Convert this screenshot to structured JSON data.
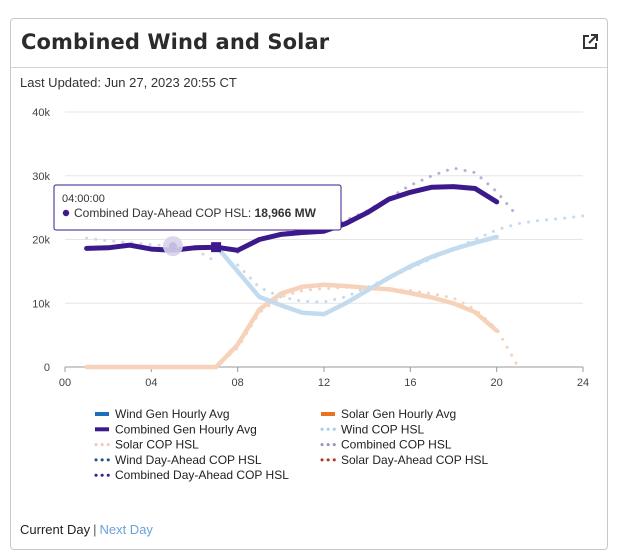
{
  "title": "Combined Wind and Solar",
  "last_updated": "Last Updated: Jun 27, 2023 20:55 CT",
  "footer": {
    "current": "Current Day",
    "separator": "|",
    "next": "Next Day"
  },
  "tooltip": {
    "time": "04:00:00",
    "label": "Combined Day-Ahead COP HSL:",
    "value": "18,966 MW"
  },
  "colors": {
    "wind": "#1f6fb8",
    "solar": "#e8731f",
    "combined": "#3d1a8c",
    "wind_light": "#c3dbef",
    "solar_light": "#f7d2bb",
    "combined_dot": "#b9b0d8"
  },
  "chart_data": {
    "type": "line",
    "xlim": [
      0,
      24
    ],
    "ylim": [
      0,
      40000
    ],
    "x_ticks": [
      "00",
      "04",
      "08",
      "12",
      "16",
      "20",
      "24"
    ],
    "y_ticks": [
      "0",
      "10k",
      "20k",
      "30k",
      "40k"
    ],
    "series": [
      {
        "name": "Wind Gen Hourly Avg",
        "style": "solid",
        "color": "#c3dbef",
        "x": [
          7,
          8,
          9,
          10,
          11,
          12,
          13,
          14,
          15,
          16,
          17,
          18,
          19,
          20
        ],
        "y": [
          19000,
          15000,
          11000,
          9700,
          8500,
          8300,
          10000,
          12000,
          14000,
          15800,
          17300,
          18500,
          19500,
          20400
        ]
      },
      {
        "name": "Solar Gen Hourly Avg",
        "style": "solid",
        "color": "#f7d2bb",
        "x": [
          1,
          2,
          3,
          4,
          5,
          6,
          7,
          8,
          9,
          10,
          11,
          12,
          13,
          14,
          15,
          16,
          17,
          18,
          19,
          20
        ],
        "y": [
          0,
          0,
          0,
          0,
          0,
          0,
          0,
          3500,
          9000,
          11500,
          12600,
          12900,
          12700,
          12400,
          12200,
          11600,
          10900,
          10000,
          8600,
          5700
        ]
      },
      {
        "name": "Combined Gen Hourly Avg",
        "style": "solid",
        "color": "#3d1a8c",
        "x": [
          1,
          2,
          3,
          4,
          5,
          6,
          7,
          8,
          9,
          10,
          11,
          12,
          13,
          14,
          15,
          16,
          17,
          18,
          19,
          20
        ],
        "y": [
          18600,
          18700,
          19100,
          18500,
          18300,
          18700,
          18800,
          18300,
          20000,
          20800,
          21100,
          21300,
          22500,
          24200,
          26300,
          27400,
          28200,
          28300,
          28000,
          25900
        ]
      },
      {
        "name": "Wind COP HSL",
        "style": "dotted",
        "color": "#c3dbef",
        "x": [
          8,
          9,
          10,
          11,
          12,
          13,
          14,
          15,
          16,
          17,
          18,
          19,
          20,
          21,
          22,
          23,
          24
        ],
        "y": [
          16000,
          12500,
          11000,
          10300,
          10200,
          11000,
          12500,
          14000,
          15500,
          17000,
          18500,
          20000,
          21500,
          22500,
          23000,
          23300,
          23700
        ]
      },
      {
        "name": "Solar COP HSL",
        "style": "dotted",
        "color": "#f7d2bb",
        "x": [
          7,
          8,
          9,
          10,
          11,
          12,
          13,
          14,
          15,
          16,
          17,
          18,
          19,
          20,
          20.5,
          21
        ],
        "y": [
          0,
          3000,
          8500,
          11000,
          12000,
          12300,
          12500,
          12400,
          12200,
          12000,
          11500,
          10800,
          9000,
          6000,
          3000,
          0
        ]
      },
      {
        "name": "Combined COP HSL",
        "style": "dotted",
        "color": "#b9b0d8",
        "x": [
          8,
          9,
          10,
          11,
          12,
          13,
          14,
          15,
          16,
          17,
          18,
          19,
          20,
          21
        ],
        "y": [
          18000,
          20000,
          21000,
          21500,
          22000,
          23000,
          24500,
          26500,
          28500,
          30000,
          31200,
          30500,
          27500,
          23500
        ]
      },
      {
        "name": "Wind Day-Ahead COP HSL",
        "style": "dotted",
        "color": "#1f6fb8",
        "x": [],
        "y": []
      },
      {
        "name": "Solar Day-Ahead COP HSL",
        "style": "dotted",
        "color": "#c0392b",
        "x": [],
        "y": []
      },
      {
        "name": "Combined Day-Ahead COP HSL",
        "style": "dotted",
        "color": "#d8d3ea",
        "x": [
          1,
          2,
          3,
          4,
          5,
          6,
          7
        ],
        "y": [
          20200,
          19800,
          19500,
          19200,
          18966,
          18500,
          16500
        ]
      }
    ],
    "legend": [
      {
        "label": "Wind Gen Hourly Avg",
        "color": "#1f6fb8",
        "style": "solid"
      },
      {
        "label": "Solar Gen Hourly Avg",
        "color": "#e8731f",
        "style": "solid"
      },
      {
        "label": "Combined Gen Hourly Avg",
        "color": "#3d1a8c",
        "style": "solid"
      },
      {
        "label": "Wind COP HSL",
        "color": "#a9c9e8",
        "style": "dotted"
      },
      {
        "label": "Solar COP HSL",
        "color": "#f3c8ad",
        "style": "dotted"
      },
      {
        "label": "Combined COP HSL",
        "color": "#9b8fc8",
        "style": "dotted"
      },
      {
        "label": "Wind Day-Ahead COP HSL",
        "color": "#1f4f8c",
        "style": "dotted"
      },
      {
        "label": "Solar Day-Ahead COP HSL",
        "color": "#b8321f",
        "style": "dotted"
      },
      {
        "label": "Combined Day-Ahead COP HSL",
        "color": "#3d1a8c",
        "style": "dotted"
      }
    ],
    "highlight": {
      "x": 5,
      "y": 18966
    },
    "marker": {
      "x": 7,
      "y": 18800
    }
  }
}
